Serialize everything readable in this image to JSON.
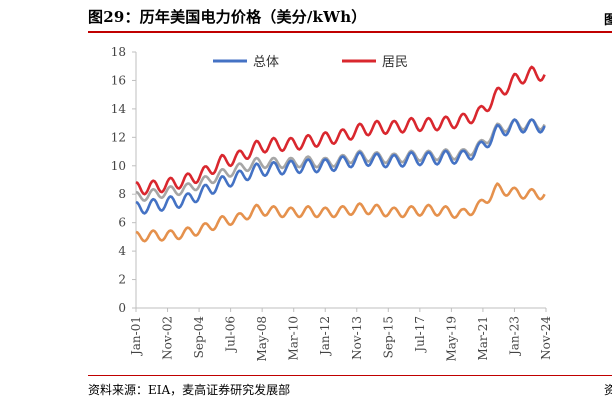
{
  "title": "图29：历年美国电力价格（美分/kWh）",
  "source": "资料来源：EIA，麦高证券研究发展部",
  "edge_fragment_title": "图",
  "edge_fragment_source": "资",
  "colors": {
    "total": "#4472c4",
    "residential": "#d9272e",
    "gray_series": "#a6a6a6",
    "orange_series": "#e5914d"
  },
  "chart_data": {
    "type": "line",
    "title": "",
    "xlabel": "",
    "ylabel": "",
    "ylim": [
      0,
      18
    ],
    "yticks": [
      0,
      2,
      4,
      6,
      8,
      10,
      12,
      14,
      16,
      18
    ],
    "x_tick_labels": [
      "Jan-01",
      "Nov-02",
      "Sep-04",
      "Jul-06",
      "May-08",
      "Mar-10",
      "Jan-12",
      "Nov-13",
      "Sep-15",
      "Jul-17",
      "May-19",
      "Mar-21",
      "Jan-23",
      "Nov-24"
    ],
    "x_range": [
      2001.0,
      2024.83
    ],
    "legend": {
      "placement": "top-center",
      "entries": [
        "总体",
        "居民"
      ]
    },
    "series": [
      {
        "name": "总体",
        "color": "#4472c4",
        "x": [
          2001.0,
          2002.0,
          2003.0,
          2004.0,
          2005.0,
          2006.0,
          2007.0,
          2008.0,
          2009.0,
          2010.0,
          2011.0,
          2012.0,
          2013.0,
          2014.0,
          2015.0,
          2016.0,
          2017.0,
          2018.0,
          2019.0,
          2020.0,
          2021.0,
          2022.0,
          2023.0,
          2024.0,
          2024.83
        ],
        "y": [
          7.0,
          7.2,
          7.4,
          7.6,
          8.2,
          8.8,
          9.2,
          9.7,
          9.8,
          9.9,
          10.0,
          10.0,
          10.2,
          10.5,
          10.4,
          10.3,
          10.5,
          10.5,
          10.6,
          10.6,
          11.2,
          12.4,
          12.8,
          12.8,
          12.8
        ]
      },
      {
        "name": "居民",
        "color": "#d9272e",
        "x": [
          2001.0,
          2002.0,
          2003.0,
          2004.0,
          2005.0,
          2006.0,
          2007.0,
          2008.0,
          2009.0,
          2010.0,
          2011.0,
          2012.0,
          2013.0,
          2014.0,
          2015.0,
          2016.0,
          2017.0,
          2018.0,
          2019.0,
          2020.0,
          2021.0,
          2022.0,
          2023.0,
          2024.0,
          2024.83
        ],
        "y": [
          8.4,
          8.5,
          8.7,
          9.0,
          9.5,
          10.3,
          10.6,
          11.3,
          11.5,
          11.5,
          11.7,
          11.9,
          12.1,
          12.5,
          12.7,
          12.7,
          12.9,
          12.9,
          13.0,
          13.2,
          13.7,
          15.0,
          16.0,
          16.5,
          16.4
        ]
      },
      {
        "color": "#a6a6a6",
        "x": [
          2001.0,
          2002.0,
          2003.0,
          2004.0,
          2005.0,
          2006.0,
          2007.0,
          2008.0,
          2009.0,
          2010.0,
          2011.0,
          2012.0,
          2013.0,
          2014.0,
          2015.0,
          2016.0,
          2017.0,
          2018.0,
          2019.0,
          2020.0,
          2021.0,
          2022.0,
          2023.0,
          2024.0,
          2024.83
        ],
        "y": [
          7.8,
          8.0,
          8.2,
          8.4,
          8.9,
          9.4,
          9.8,
          10.2,
          10.2,
          10.2,
          10.3,
          10.2,
          10.4,
          10.7,
          10.6,
          10.5,
          10.7,
          10.7,
          10.8,
          10.8,
          11.4,
          12.6,
          12.9,
          12.9,
          12.9
        ]
      },
      {
        "color": "#e5914d",
        "x": [
          2001.0,
          2002.0,
          2003.0,
          2004.0,
          2005.0,
          2006.0,
          2007.0,
          2008.0,
          2009.0,
          2010.0,
          2011.0,
          2012.0,
          2013.0,
          2014.0,
          2015.0,
          2016.0,
          2017.0,
          2018.0,
          2019.0,
          2020.0,
          2021.0,
          2022.0,
          2023.0,
          2024.0,
          2024.83
        ],
        "y": [
          5.0,
          5.1,
          5.1,
          5.3,
          5.6,
          6.1,
          6.3,
          6.9,
          6.8,
          6.7,
          6.8,
          6.7,
          6.8,
          7.0,
          6.9,
          6.7,
          6.8,
          6.9,
          6.8,
          6.6,
          7.2,
          8.4,
          8.1,
          8.0,
          8.0
        ]
      }
    ]
  }
}
